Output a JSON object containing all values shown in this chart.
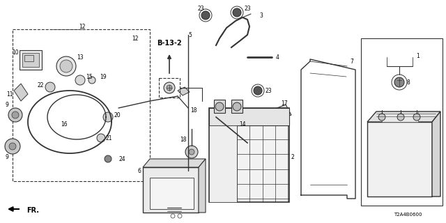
{
  "bg_color": "#ffffff",
  "line_color": "#333333",
  "text_color": "#000000",
  "diagram_code": "T2A4B0600",
  "ref_label": "B-13-2",
  "fr_label": "FR.",
  "figsize": [
    6.4,
    3.2
  ],
  "dpi": 100
}
